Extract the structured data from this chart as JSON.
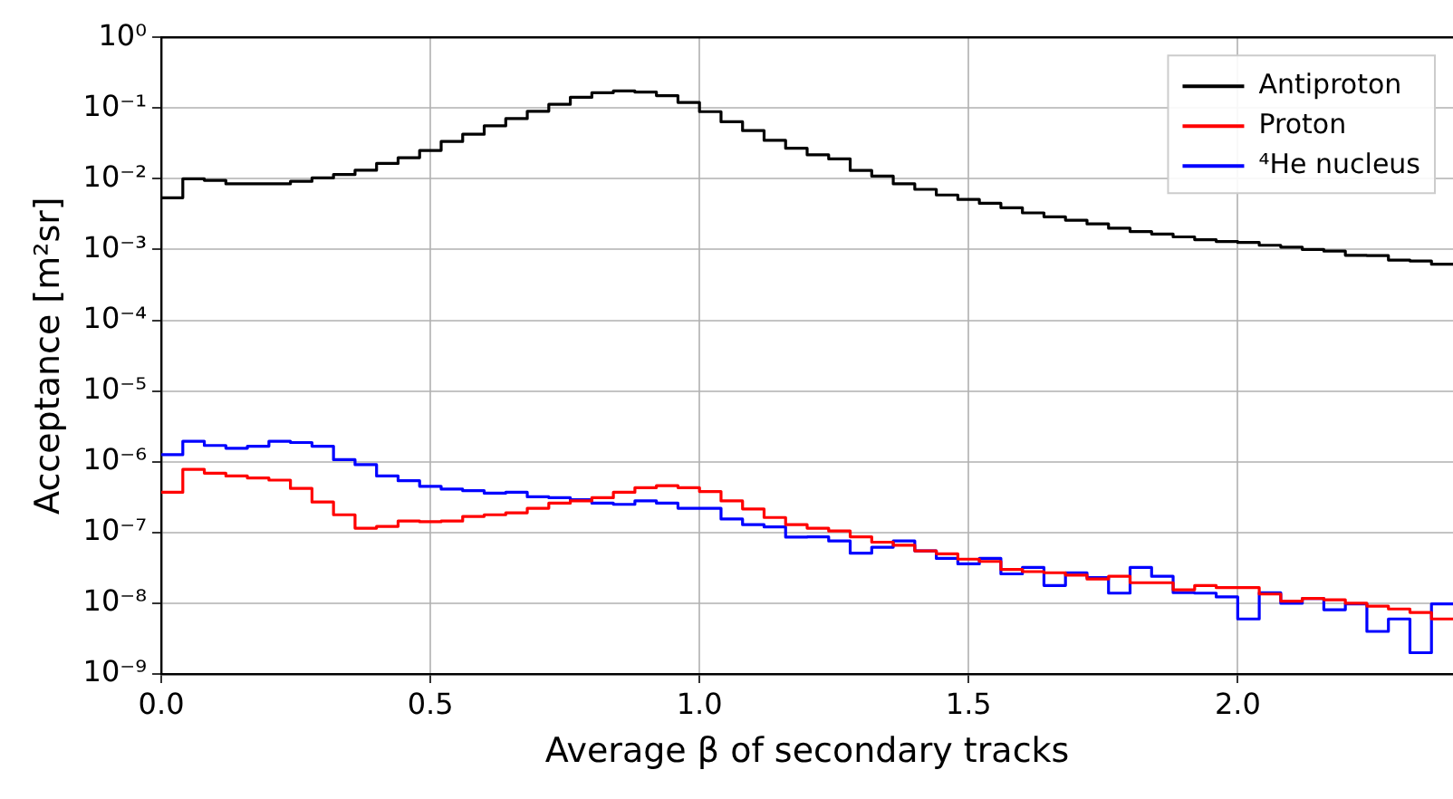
{
  "chart_data": {
    "type": "histogram",
    "xlabel": "Average β of secondary tracks",
    "ylabel": "Acceptance [m²sr]",
    "bins": [
      0,
      0.04,
      0.08,
      0.12,
      0.16,
      0.2,
      0.24,
      0.28,
      0.32,
      0.36,
      0.4,
      0.44,
      0.48,
      0.52,
      0.56,
      0.6,
      0.64,
      0.68,
      0.72,
      0.76,
      0.8,
      0.84,
      0.88,
      0.92,
      0.96,
      1.0,
      1.04,
      1.08,
      1.12,
      1.16,
      1.2,
      1.24,
      1.28,
      1.32,
      1.36,
      1.4,
      1.44,
      1.48,
      1.52,
      1.56,
      1.6,
      1.64,
      1.68,
      1.72,
      1.76,
      1.8,
      1.84,
      1.88,
      1.92,
      1.96,
      2.0,
      2.04,
      2.08,
      2.12,
      2.16,
      2.2,
      2.24,
      2.28,
      2.32,
      2.36,
      2.4
    ],
    "series": [
      {
        "name": "Antiproton",
        "color": "#000000",
        "values": [
          0.0054,
          0.01,
          0.0095,
          0.0085,
          0.0085,
          0.0085,
          0.0092,
          0.0103,
          0.0115,
          0.0132,
          0.0165,
          0.0199,
          0.0252,
          0.0337,
          0.0427,
          0.056,
          0.0709,
          0.09,
          0.113,
          0.142,
          0.165,
          0.175,
          0.168,
          0.15,
          0.12,
          0.089,
          0.064,
          0.048,
          0.035,
          0.027,
          0.0218,
          0.0191,
          0.0131,
          0.0109,
          0.0085,
          0.0071,
          0.0059,
          0.0051,
          0.0045,
          0.0039,
          0.0033,
          0.0029,
          0.0026,
          0.0023,
          0.002,
          0.0018,
          0.00166,
          0.00151,
          0.00138,
          0.0013,
          0.00126,
          0.00115,
          0.00108,
          0.001,
          0.00095,
          0.00083,
          0.00082,
          0.00071,
          0.00069,
          0.00062
        ]
      },
      {
        "name": "Proton",
        "color": "#ff0000",
        "values": [
          3.7e-07,
          7.8e-07,
          6.9e-07,
          6.3e-07,
          5.9e-07,
          5.5e-07,
          4.2e-07,
          2.7e-07,
          1.78e-07,
          1.15e-07,
          1.22e-07,
          1.45e-07,
          1.42e-07,
          1.45e-07,
          1.69e-07,
          1.78e-07,
          1.9e-07,
          2.2e-07,
          2.6e-07,
          2.8e-07,
          3.1e-07,
          3.7e-07,
          4.3e-07,
          4.6e-07,
          4.3e-07,
          3.8e-07,
          2.8e-07,
          2.15e-07,
          1.63e-07,
          1.29e-07,
          1.15e-07,
          1.05e-07,
          8.7e-08,
          7.3e-08,
          6.6e-08,
          5.5e-08,
          5e-08,
          4.2e-08,
          3.9e-08,
          3e-08,
          2.8e-08,
          2.7e-08,
          2.5e-08,
          2.2e-08,
          2.4e-08,
          1.95e-08,
          1.95e-08,
          1.55e-08,
          1.78e-08,
          1.66e-08,
          1.66e-08,
          1.35e-08,
          1.07e-08,
          1.17e-08,
          1.12e-08,
          1e-08,
          9.1e-09,
          8.3e-09,
          7.4e-09,
          6e-09
        ]
      },
      {
        "name": "⁴He nucleus",
        "color": "#0000ff",
        "values": [
          1.26e-06,
          1.95e-06,
          1.7e-06,
          1.55e-06,
          1.66e-06,
          1.95e-06,
          1.87e-06,
          1.66e-06,
          1.07e-06,
          9.1e-07,
          6.3e-07,
          5.4e-07,
          4.5e-07,
          4.1e-07,
          3.9e-07,
          3.6e-07,
          3.7e-07,
          3.2e-07,
          3.1e-07,
          2.9e-07,
          2.6e-07,
          2.5e-07,
          2.8e-07,
          2.6e-07,
          2.2e-07,
          2.2e-07,
          1.55e-07,
          1.29e-07,
          1.2e-07,
          8.6e-08,
          8.7e-08,
          7.6e-08,
          5.1e-08,
          6.2e-08,
          7.6e-08,
          5.5e-08,
          4.3e-08,
          3.6e-08,
          4.3e-08,
          2.6e-08,
          3.2e-08,
          1.78e-08,
          2.7e-08,
          2.3e-08,
          1.39e-08,
          3.2e-08,
          2.4e-08,
          1.41e-08,
          1.39e-08,
          1.23e-08,
          6e-09,
          1.41e-08,
          1e-08,
          1.17e-08,
          8.1e-09,
          9.8e-09,
          4e-09,
          6e-09,
          2e-09,
          9.8e-09
        ]
      }
    ],
    "xlim": [
      0,
      2.4
    ],
    "xticks": [
      {
        "value": 0,
        "label": "0.0"
      },
      {
        "value": 0.5,
        "label": "0.5"
      },
      {
        "value": 1,
        "label": "1.0"
      },
      {
        "value": 1.5,
        "label": "1.5"
      },
      {
        "value": 2,
        "label": "2.0"
      }
    ],
    "ylim": [
      1e-09,
      1
    ],
    "yticks": [
      {
        "value": 1e-09,
        "label": "10⁻⁹"
      },
      {
        "value": 1e-08,
        "label": "10⁻⁸"
      },
      {
        "value": 1e-07,
        "label": "10⁻⁷"
      },
      {
        "value": 1e-06,
        "label": "10⁻⁶"
      },
      {
        "value": 1e-05,
        "label": "10⁻⁵"
      },
      {
        "value": 0.0001,
        "label": "10⁻⁴"
      },
      {
        "value": 0.001,
        "label": "10⁻³"
      },
      {
        "value": 0.01,
        "label": "10⁻²"
      },
      {
        "value": 0.1,
        "label": "10⁻¹"
      },
      {
        "value": 1,
        "label": "10⁰"
      }
    ],
    "log": true,
    "grid": true,
    "legend": "top right",
    "marker": "none",
    "line_style": "solid"
  }
}
